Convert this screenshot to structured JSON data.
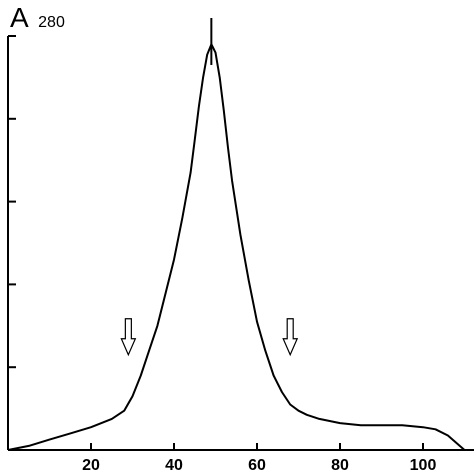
{
  "chart_data": {
    "type": "line",
    "title": "",
    "xlabel": "",
    "ylabel_main": "A",
    "ylabel_sub": "280",
    "xlim": [
      0,
      110
    ],
    "ylim": [
      0,
      1.0
    ],
    "x_ticks": [
      20,
      40,
      60,
      80,
      100
    ],
    "x_tick_labels": [
      "20",
      "40",
      "60",
      "80",
      "100"
    ],
    "y_ticks": [
      0,
      0.2,
      0.4,
      0.6,
      0.8,
      1.0
    ],
    "grid": false,
    "line_color": "#000000",
    "series": [
      {
        "x": [
          0,
          5,
          10,
          15,
          20,
          25,
          28,
          30,
          32,
          34,
          36,
          38,
          40,
          42,
          44,
          45,
          46,
          47,
          48,
          49,
          50,
          51,
          52,
          53,
          54,
          56,
          58,
          60,
          62,
          64,
          66,
          68,
          70,
          72,
          75,
          80,
          85,
          90,
          95,
          100,
          103,
          106,
          110
        ],
        "y": [
          0.0,
          0.01,
          0.025,
          0.04,
          0.055,
          0.075,
          0.095,
          0.13,
          0.18,
          0.24,
          0.3,
          0.38,
          0.46,
          0.56,
          0.67,
          0.75,
          0.83,
          0.9,
          0.955,
          0.98,
          0.96,
          0.9,
          0.82,
          0.73,
          0.65,
          0.52,
          0.41,
          0.31,
          0.24,
          0.18,
          0.14,
          0.11,
          0.095,
          0.085,
          0.075,
          0.065,
          0.06,
          0.06,
          0.06,
          0.055,
          0.05,
          0.035,
          0.0
        ]
      }
    ],
    "peak_marker": {
      "x": 49
    },
    "annotations": [
      {
        "kind": "down-arrow",
        "x": 29,
        "y": 0.23
      },
      {
        "kind": "down-arrow",
        "x": 68,
        "y": 0.23
      }
    ]
  }
}
